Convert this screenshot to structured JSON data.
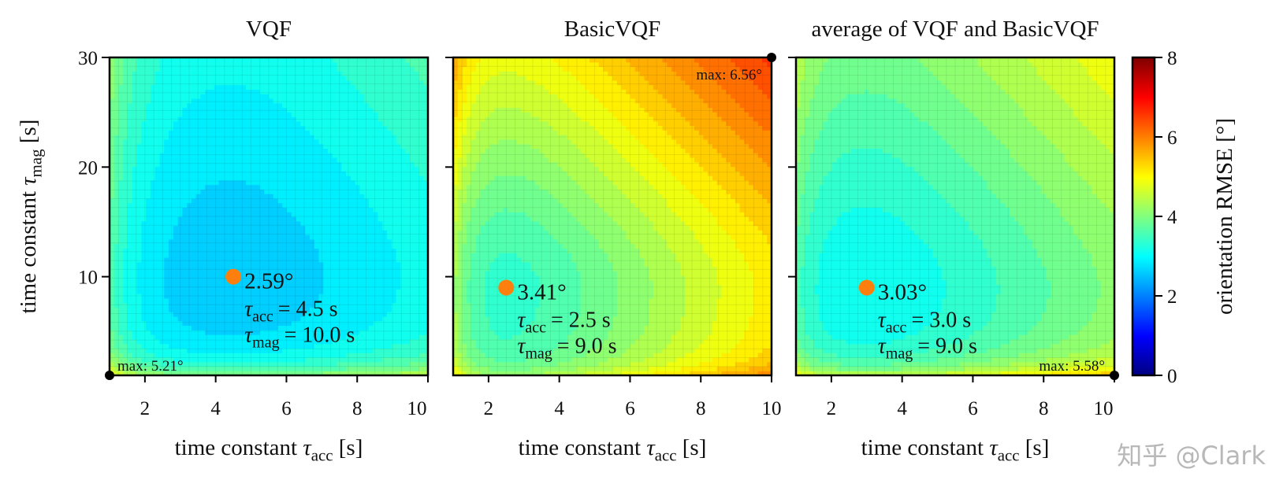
{
  "chart_data": {
    "type": "heatmap",
    "colormap": "jet",
    "colorbar": {
      "label": "orientation RMSE [°]",
      "range": [
        0,
        8
      ],
      "ticks": [
        "0",
        "2",
        "4",
        "6",
        "8"
      ]
    },
    "xlabel": {
      "prefix": "time constant ",
      "symbol": "τ",
      "sub": "acc",
      "suffix": " [s]"
    },
    "ylabel": {
      "prefix": "time constant ",
      "symbol": "τ",
      "sub": "mag",
      "suffix": " [s]"
    },
    "xlim": [
      1,
      10
    ],
    "ylim": [
      1,
      30
    ],
    "xticks": [
      "2",
      "4",
      "6",
      "8",
      "10"
    ],
    "yticks": [
      "10",
      "20",
      "30"
    ],
    "grid": true,
    "panels": [
      {
        "title": "VQF",
        "minimum": {
          "value_label": "2.59°",
          "value": 2.59,
          "tau_acc": 4.5,
          "tau_mag": 10.0,
          "acc_label": "= 4.5 s",
          "mag_label": "= 10.0 s"
        },
        "maximum": {
          "label": "max: 5.21°",
          "value": 5.21,
          "tau_acc": 1,
          "tau_mag": 1
        }
      },
      {
        "title": "BasicVQF",
        "minimum": {
          "value_label": "3.41°",
          "value": 3.41,
          "tau_acc": 2.5,
          "tau_mag": 9.0,
          "acc_label": "= 2.5 s",
          "mag_label": "= 9.0 s"
        },
        "maximum": {
          "label": "max: 6.56°",
          "value": 6.56,
          "tau_acc": 10,
          "tau_mag": 30
        }
      },
      {
        "title": "average of VQF and BasicVQF",
        "minimum": {
          "value_label": "3.03°",
          "value": 3.03,
          "tau_acc": 3.0,
          "tau_mag": 9.0,
          "acc_label": "= 3.0 s",
          "mag_label": "= 9.0 s"
        },
        "maximum": {
          "label": "max: 5.58°",
          "value": 5.58,
          "tau_acc": 10,
          "tau_mag": 1
        }
      }
    ],
    "marker_color": "#ff7f0e"
  },
  "watermark": "知乎 @Clark"
}
